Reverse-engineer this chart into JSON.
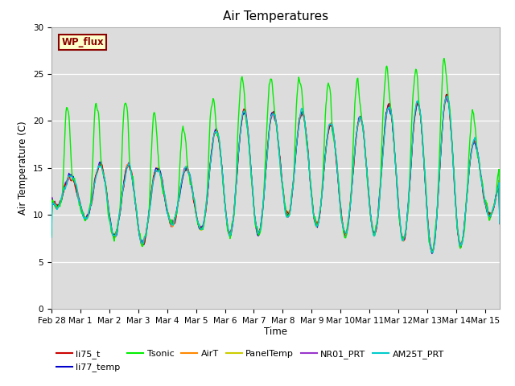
{
  "title": "Air Temperatures",
  "xlabel": "Time",
  "ylabel": "Air Temperature (C)",
  "ylim": [
    0,
    30
  ],
  "yticks": [
    0,
    5,
    10,
    15,
    20,
    25,
    30
  ],
  "bg_color": "#dcdcdc",
  "series": {
    "li75_t": {
      "color": "#cc0000",
      "lw": 0.8,
      "zorder": 5
    },
    "li77_temp": {
      "color": "#0000cc",
      "lw": 0.8,
      "zorder": 5
    },
    "Tsonic": {
      "color": "#00ee00",
      "lw": 1.0,
      "zorder": 6
    },
    "AirT": {
      "color": "#ff8800",
      "lw": 0.8,
      "zorder": 5
    },
    "PanelTemp": {
      "color": "#cccc00",
      "lw": 0.8,
      "zorder": 4
    },
    "NR01_PRT": {
      "color": "#9933cc",
      "lw": 0.8,
      "zorder": 4
    },
    "AM25T_PRT": {
      "color": "#00cccc",
      "lw": 1.0,
      "zorder": 7
    }
  },
  "legend_label": "WP_flux",
  "xtick_labels": [
    "Feb 28",
    "Mar 1",
    "Mar 2",
    "Mar 3",
    "Mar 4",
    "Mar 5",
    "Mar 6",
    "Mar 7",
    "Mar 8",
    "Mar 9",
    "Mar 10",
    "Mar 11",
    "Mar 12",
    "Mar 13",
    "Mar 14",
    "Mar 15"
  ],
  "xtick_positions": [
    0,
    1,
    2,
    3,
    4,
    5,
    6,
    7,
    8,
    9,
    10,
    11,
    12,
    13,
    14,
    15
  ],
  "day_night_min": [
    11,
    10,
    8,
    6.5,
    9,
    8.5,
    8,
    7.5,
    10,
    9,
    8,
    8,
    7.5,
    6,
    6,
    10
  ],
  "day_peaks_base": [
    14.5,
    14,
    16,
    15,
    15,
    15,
    21,
    21,
    21,
    21,
    19,
    21,
    22,
    22,
    23,
    15
  ],
  "tsonic_extra": [
    8,
    8,
    8,
    8.5,
    5,
    5,
    5,
    5,
    5,
    5,
    6,
    5,
    5,
    5,
    6,
    2
  ]
}
